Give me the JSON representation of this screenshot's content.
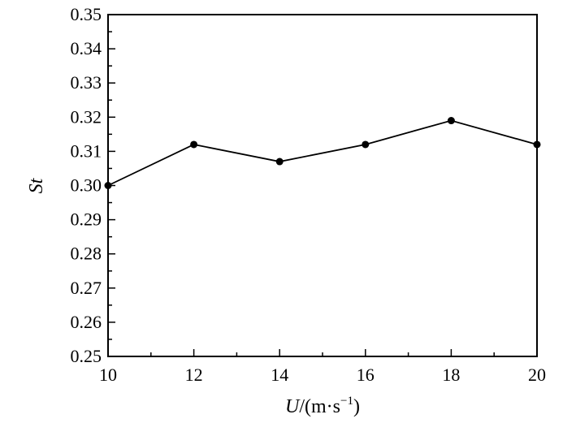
{
  "chart_data": {
    "type": "line",
    "title": "",
    "xlabel_main": "U",
    "xlabel_unit": "/(m·s",
    "xlabel_exp": "−1",
    "xlabel_close": ")",
    "ylabel": "St",
    "xlim": [
      10,
      20
    ],
    "ylim": [
      0.25,
      0.35
    ],
    "x_ticks": [
      "10",
      "12",
      "14",
      "16",
      "18",
      "20"
    ],
    "y_ticks": [
      "0.25",
      "0.26",
      "0.27",
      "0.28",
      "0.29",
      "0.30",
      "0.31",
      "0.32",
      "0.33",
      "0.34",
      "0.35"
    ],
    "grid": false,
    "series": [
      {
        "x": [
          10,
          12,
          14,
          16,
          18,
          20
        ],
        "values": [
          0.3,
          0.312,
          0.307,
          0.312,
          0.319,
          0.312
        ],
        "color": "#000000",
        "marker": "circle"
      }
    ]
  }
}
